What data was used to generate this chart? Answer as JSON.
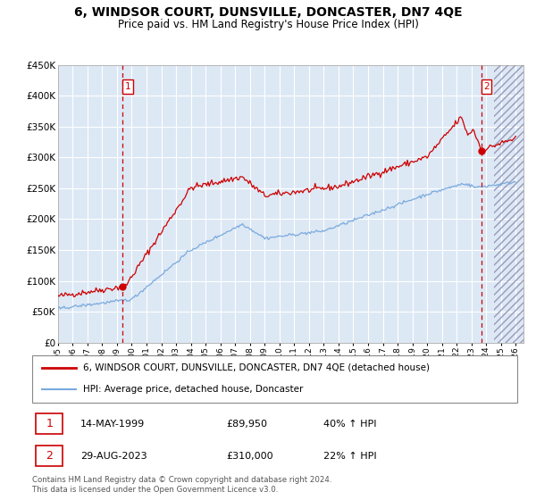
{
  "title": "6, WINDSOR COURT, DUNSVILLE, DONCASTER, DN7 4QE",
  "subtitle": "Price paid vs. HM Land Registry's House Price Index (HPI)",
  "title_fontsize": 10,
  "subtitle_fontsize": 8.5,
  "bg_color": "#dde8f5",
  "grid_color": "#ffffff",
  "red_line_color": "#cc0000",
  "blue_line_color": "#7aaadd",
  "ylim": [
    0,
    450000
  ],
  "yticks": [
    0,
    50000,
    100000,
    150000,
    200000,
    250000,
    300000,
    350000,
    400000,
    450000
  ],
  "ytick_labels": [
    "£0",
    "£50K",
    "£100K",
    "£150K",
    "£200K",
    "£250K",
    "£300K",
    "£350K",
    "£400K",
    "£450K"
  ],
  "xmin_year": 1995.0,
  "xmax_year": 2026.5,
  "xtick_years": [
    1995,
    1996,
    1997,
    1998,
    1999,
    2000,
    2001,
    2002,
    2003,
    2004,
    2005,
    2006,
    2007,
    2008,
    2009,
    2010,
    2011,
    2012,
    2013,
    2014,
    2015,
    2016,
    2017,
    2018,
    2019,
    2020,
    2021,
    2022,
    2023,
    2024,
    2025,
    2026
  ],
  "vline1_year": 1999.37,
  "vline2_year": 2023.66,
  "marker1_year": 1999.37,
  "marker1_value": 89950,
  "marker2_year": 2023.66,
  "marker2_value": 310000,
  "future_start": 2024.5,
  "legend_line1": "6, WINDSOR COURT, DUNSVILLE, DONCASTER, DN7 4QE (detached house)",
  "legend_line2": "HPI: Average price, detached house, Doncaster",
  "annotation1_label": "1",
  "annotation1_date": "14-MAY-1999",
  "annotation1_price": "£89,950",
  "annotation1_hpi": "40% ↑ HPI",
  "annotation2_label": "2",
  "annotation2_date": "29-AUG-2023",
  "annotation2_price": "£310,000",
  "annotation2_hpi": "22% ↑ HPI",
  "footer": "Contains HM Land Registry data © Crown copyright and database right 2024.\nThis data is licensed under the Open Government Licence v3.0."
}
